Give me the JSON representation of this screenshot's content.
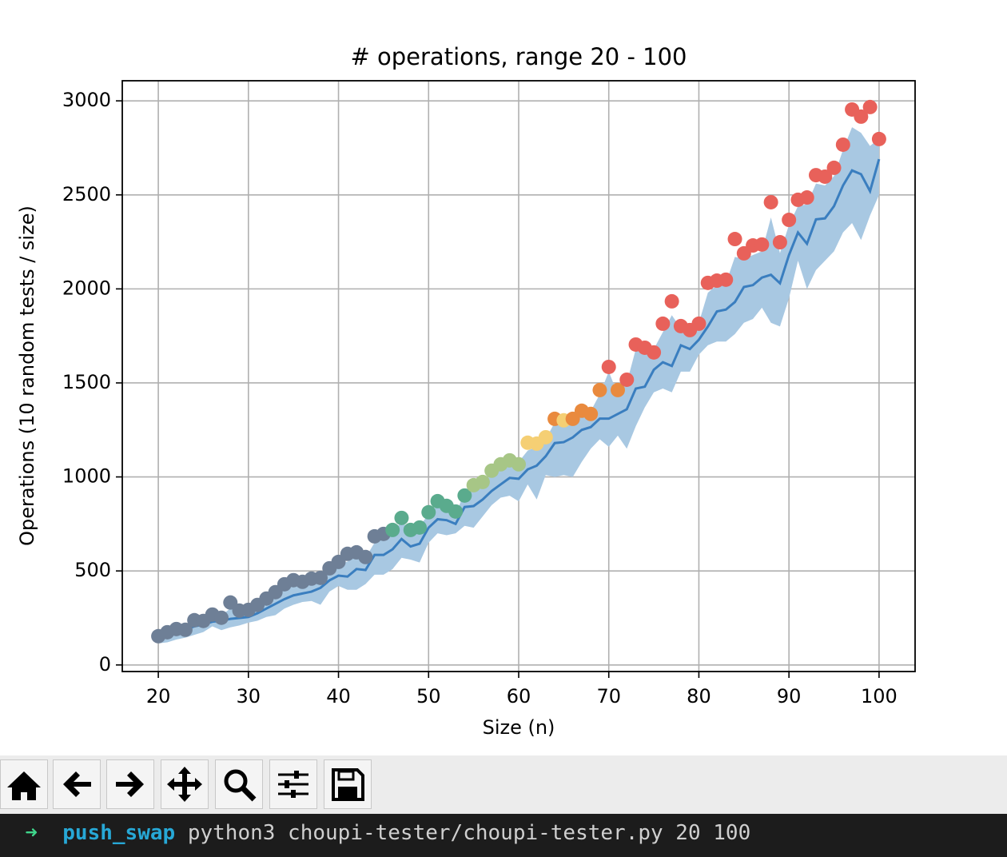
{
  "chart_data": {
    "type": "scatter",
    "title": "# operations, range 20 - 100",
    "x_label": "Size (n)",
    "y_label": "Operations (10 random tests / size)",
    "x": [
      20,
      21,
      22,
      23,
      24,
      25,
      26,
      27,
      28,
      29,
      30,
      31,
      32,
      33,
      34,
      35,
      36,
      37,
      38,
      39,
      40,
      41,
      42,
      43,
      44,
      45,
      46,
      47,
      48,
      49,
      50,
      51,
      52,
      53,
      54,
      55,
      56,
      57,
      58,
      59,
      60,
      61,
      62,
      63,
      64,
      65,
      66,
      67,
      68,
      69,
      70,
      71,
      72,
      73,
      74,
      75,
      76,
      77,
      78,
      79,
      80,
      81,
      82,
      83,
      84,
      85,
      86,
      87,
      88,
      89,
      90,
      91,
      92,
      93,
      94,
      95,
      96,
      97,
      98,
      99,
      100
    ],
    "max_values": [
      153,
      174,
      191,
      187,
      238,
      234,
      268,
      251,
      332,
      289,
      293,
      319,
      353,
      387,
      429,
      451,
      442,
      459,
      463,
      514,
      548,
      591,
      599,
      574,
      684,
      697,
      718,
      782,
      718,
      731,
      812,
      871,
      846,
      816,
      901,
      956,
      973,
      1033,
      1067,
      1088,
      1067,
      1182,
      1177,
      1211,
      1309,
      1301,
      1309,
      1352,
      1335,
      1462,
      1585,
      1462,
      1517,
      1704,
      1687,
      1662,
      1815,
      1934,
      1802,
      1781,
      1815,
      2032,
      2044,
      2049,
      2265,
      2189,
      2231,
      2236,
      2461,
      2248,
      2367,
      2474,
      2486,
      2605,
      2597,
      2644,
      2767,
      2954,
      2916,
      2967,
      2797
    ],
    "point_colors": [
      "#6e7f96",
      "#6e7f96",
      "#6e7f96",
      "#6e7f96",
      "#6e7f96",
      "#6e7f96",
      "#6e7f96",
      "#6e7f96",
      "#6e7f96",
      "#6e7f96",
      "#6e7f96",
      "#6e7f96",
      "#6e7f96",
      "#6e7f96",
      "#6e7f96",
      "#6e7f96",
      "#6e7f96",
      "#6e7f96",
      "#6e7f96",
      "#6e7f96",
      "#6e7f96",
      "#6e7f96",
      "#6e7f96",
      "#6e7f96",
      "#6e7f96",
      "#6e7f96",
      "#5aab8d",
      "#5aab8d",
      "#5aab8d",
      "#5aab8d",
      "#5aab8d",
      "#5aab8d",
      "#5aab8d",
      "#5aab8d",
      "#5aab8d",
      "#a7c686",
      "#a7c686",
      "#a7c686",
      "#a7c686",
      "#a7c686",
      "#a7c686",
      "#f5cf74",
      "#f5cf74",
      "#f5cf74",
      "#e98a3e",
      "#f5cf74",
      "#e98a3e",
      "#e98a3e",
      "#e98a3e",
      "#e98a3e",
      "#e8615a",
      "#e98a3e",
      "#e8615a",
      "#e8615a",
      "#e8615a",
      "#e8615a",
      "#e8615a",
      "#e8615a",
      "#e8615a",
      "#e8615a",
      "#e8615a",
      "#e8615a",
      "#e8615a",
      "#e8615a",
      "#e8615a",
      "#e8615a",
      "#e8615a",
      "#e8615a",
      "#e8615a",
      "#e8615a",
      "#e8615a",
      "#e8615a",
      "#e8615a",
      "#e8615a",
      "#e8615a",
      "#e8615a",
      "#e8615a",
      "#e8615a",
      "#e8615a",
      "#e8615a",
      "#e8615a"
    ],
    "mean_values": [
      150,
      165,
      175,
      190,
      205,
      215,
      230,
      235,
      245,
      250,
      255,
      275,
      300,
      325,
      350,
      370,
      380,
      390,
      410,
      450,
      475,
      470,
      510,
      505,
      585,
      585,
      615,
      670,
      630,
      645,
      730,
      775,
      770,
      750,
      840,
      845,
      880,
      925,
      960,
      995,
      990,
      1040,
      1060,
      1110,
      1180,
      1185,
      1210,
      1250,
      1265,
      1310,
      1310,
      1335,
      1360,
      1470,
      1480,
      1570,
      1610,
      1590,
      1700,
      1680,
      1730,
      1800,
      1880,
      1890,
      1930,
      2010,
      2020,
      2060,
      2075,
      2030,
      2180,
      2300,
      2240,
      2370,
      2375,
      2440,
      2550,
      2630,
      2610,
      2520,
      2690
    ],
    "mean_color": "#3a7ebf",
    "band_low": [
      115,
      120,
      135,
      145,
      160,
      175,
      205,
      185,
      200,
      210,
      225,
      235,
      255,
      265,
      300,
      320,
      335,
      340,
      320,
      390,
      420,
      400,
      400,
      430,
      480,
      480,
      510,
      570,
      560,
      545,
      650,
      700,
      690,
      700,
      740,
      730,
      790,
      850,
      890,
      900,
      870,
      960,
      880,
      1010,
      1000,
      1010,
      1000,
      1080,
      1150,
      1200,
      1160,
      1220,
      1150,
      1270,
      1370,
      1450,
      1470,
      1450,
      1560,
      1560,
      1650,
      1700,
      1720,
      1720,
      1760,
      1820,
      1840,
      1900,
      1820,
      1800,
      1950,
      2150,
      2000,
      2100,
      2150,
      2200,
      2300,
      2350,
      2260,
      2390,
      2500
    ],
    "band_high": [
      175,
      195,
      205,
      215,
      240,
      245,
      260,
      265,
      300,
      290,
      285,
      310,
      340,
      370,
      400,
      420,
      430,
      440,
      455,
      500,
      530,
      550,
      575,
      570,
      650,
      680,
      710,
      760,
      720,
      740,
      800,
      850,
      840,
      800,
      920,
      950,
      970,
      1010,
      1050,
      1070,
      1080,
      1140,
      1160,
      1200,
      1290,
      1300,
      1300,
      1350,
      1350,
      1440,
      1560,
      1440,
      1500,
      1680,
      1650,
      1680,
      1770,
      1860,
      1790,
      1780,
      1820,
      1980,
      2020,
      2030,
      2170,
      2160,
      2180,
      2200,
      2380,
      2190,
      2340,
      2440,
      2450,
      2560,
      2550,
      2600,
      2740,
      2860,
      2830,
      2760,
      2800
    ],
    "band_color": "#a8c8e2",
    "xlim": [
      16,
      104
    ],
    "xticks": [
      20,
      30,
      40,
      50,
      60,
      70,
      80,
      90,
      100
    ],
    "ylim": [
      -35,
      3107
    ],
    "yticks": [
      0,
      500,
      1000,
      1500,
      2000,
      2500,
      3000
    ],
    "grid": true
  },
  "terminal": {
    "prompt": "➜",
    "directory": "push_swap",
    "command": "python3 choupi-tester/choupi-tester.py 20 100"
  }
}
